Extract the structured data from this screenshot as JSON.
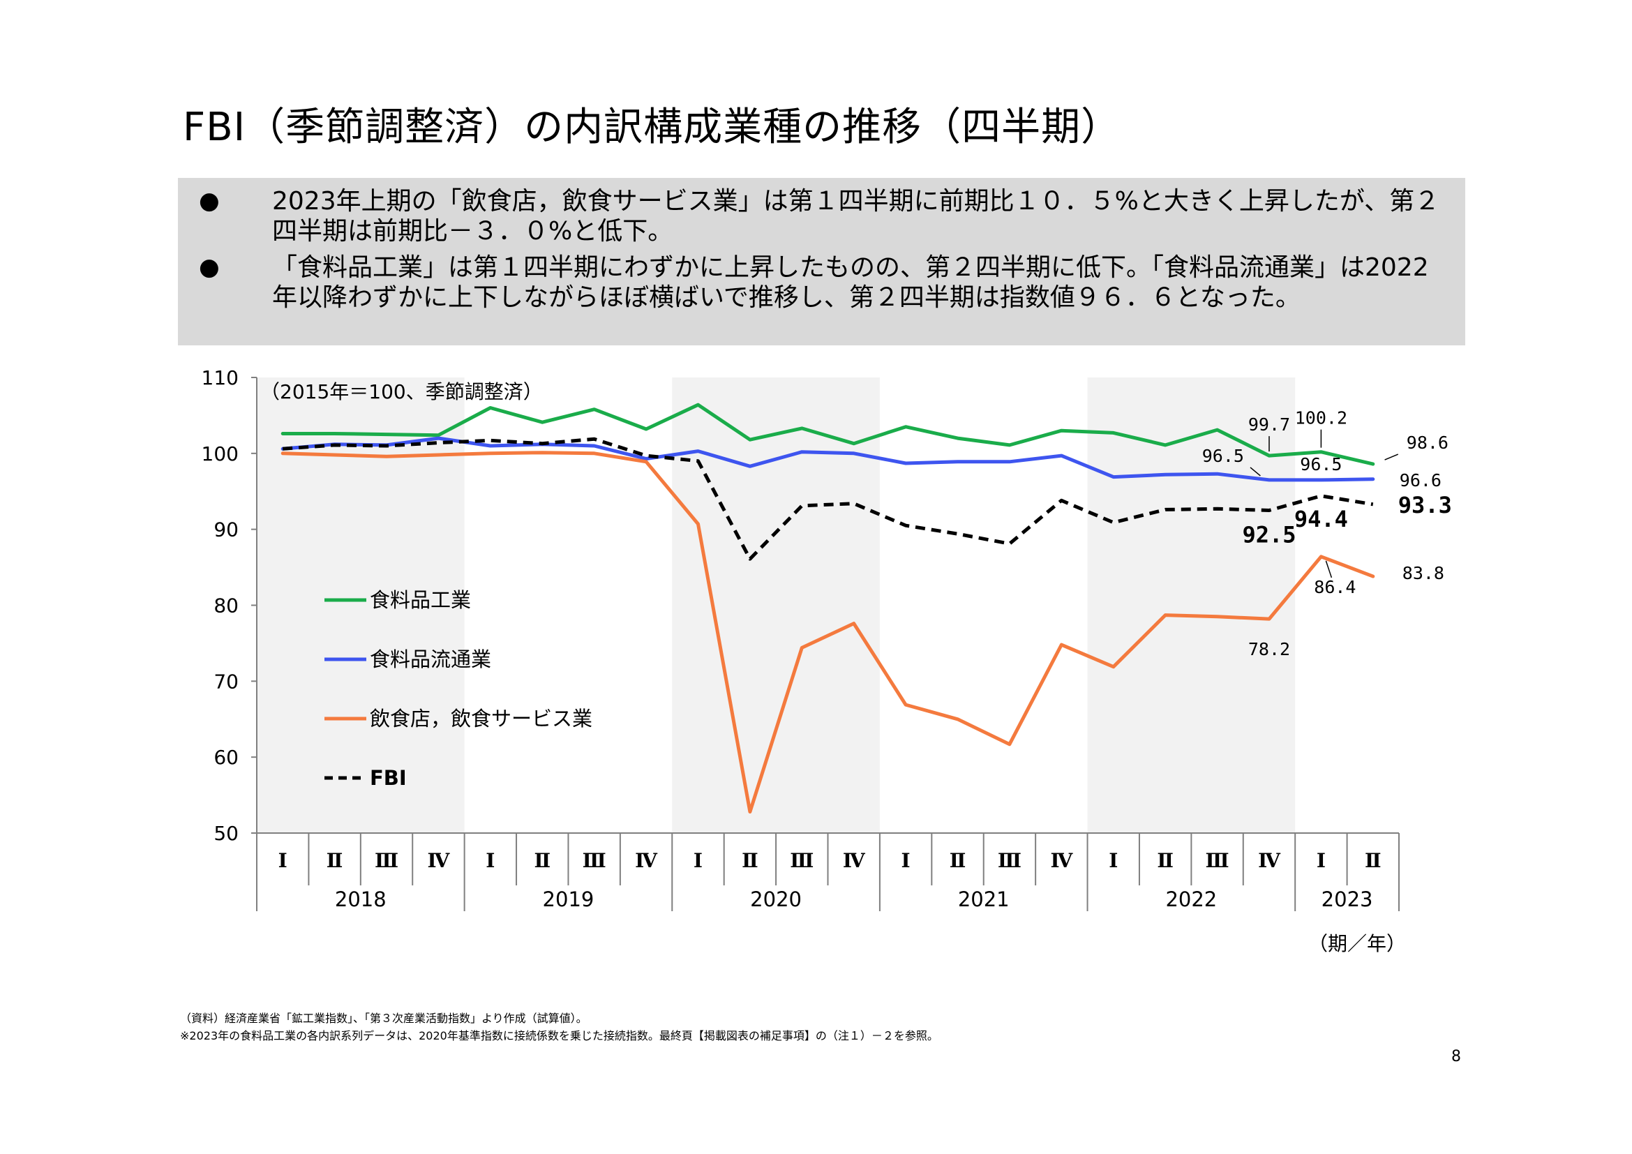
{
  "page": {
    "title": "FBI（季節調整済）の内訳構成業種の推移（四半期）",
    "bullets": [
      {
        "marker": "●",
        "text": "2023年上期の「飲食店，飲食サービス業」は第１四半期に前期比１０．５%と大きく上昇したが、第２四半期は前期比－３．０%と低下。"
      },
      {
        "marker": "●",
        "text": "「食料品工業」は第１四半期にわずかに上昇したものの、第２四半期に低下。「食料品流通業」は2022年以降わずかに上下しながらほぼ横ばいで推移し、第２四半期は指数値９６．６となった。"
      }
    ],
    "footnotes": [
      "（資料）経済産業省「鉱工業指数」、「第３次産業活動指数」より作成（試算値）。",
      "※2023年の食料品工業の各内訳系列データは、2020年基準指数に接続係数を乗じた接続指数。最終頁【掲載図表の補足事項】の（注１）－２を参照。"
    ],
    "page_number": "8"
  },
  "chart_data": {
    "type": "line",
    "unit_note": "（2015年＝100、季節調整済）",
    "x_axis_note": "（期／年）",
    "ylim": [
      50,
      110
    ],
    "yticks": [
      "50",
      "60",
      "70",
      "80",
      "90",
      "100",
      "110"
    ],
    "quarter_labels": [
      "Ⅰ",
      "Ⅱ",
      "Ⅲ",
      "Ⅳ",
      "Ⅰ",
      "Ⅱ",
      "Ⅲ",
      "Ⅳ",
      "Ⅰ",
      "Ⅱ",
      "Ⅲ",
      "Ⅳ",
      "Ⅰ",
      "Ⅱ",
      "Ⅲ",
      "Ⅳ",
      "Ⅰ",
      "Ⅱ",
      "Ⅲ",
      "Ⅳ",
      "Ⅰ",
      "Ⅱ"
    ],
    "years": [
      {
        "label": "2018",
        "quarters": 4,
        "shaded": true
      },
      {
        "label": "2019",
        "quarters": 4,
        "shaded": false
      },
      {
        "label": "2020",
        "quarters": 4,
        "shaded": true
      },
      {
        "label": "2021",
        "quarters": 4,
        "shaded": false
      },
      {
        "label": "2022",
        "quarters": 4,
        "shaded": true
      },
      {
        "label": "2023",
        "quarters": 2,
        "shaded": false
      }
    ],
    "series": [
      {
        "name": "食料品工業",
        "color": "#1aac4a",
        "dash": false,
        "values": [
          102.6,
          102.6,
          102.5,
          102.4,
          106.0,
          104.1,
          105.8,
          103.2,
          106.4,
          101.8,
          103.3,
          101.3,
          103.5,
          102.0,
          101.1,
          103.0,
          102.7,
          101.1,
          103.1,
          99.7,
          100.2,
          98.6
        ]
      },
      {
        "name": "食料品流通業",
        "color": "#3e55ef",
        "dash": false,
        "values": [
          100.6,
          101.2,
          101.1,
          102.0,
          101.0,
          101.2,
          101.0,
          99.3,
          100.3,
          98.3,
          100.2,
          100.0,
          98.7,
          98.9,
          98.9,
          99.7,
          96.9,
          97.2,
          97.3,
          96.5,
          96.5,
          96.6
        ]
      },
      {
        "name": "飲食店，飲食サービス業",
        "color": "#f47a3e",
        "dash": false,
        "values": [
          100.0,
          99.8,
          99.6,
          99.8,
          100.0,
          100.1,
          100.0,
          98.9,
          90.7,
          52.8,
          74.4,
          77.6,
          66.9,
          65.0,
          61.7,
          74.8,
          71.9,
          78.7,
          78.5,
          78.2,
          86.4,
          83.8
        ]
      },
      {
        "name": "FBI",
        "color": "#000000",
        "dash": true,
        "values": [
          100.6,
          101.1,
          101.0,
          101.4,
          101.7,
          101.3,
          101.9,
          99.7,
          99.0,
          86.1,
          93.1,
          93.4,
          90.5,
          89.4,
          88.1,
          93.8,
          90.9,
          92.6,
          92.7,
          92.5,
          94.4,
          93.3
        ]
      }
    ],
    "data_labels": [
      {
        "series": "食料品工業",
        "index": 19,
        "text": "99.7"
      },
      {
        "series": "食料品工業",
        "index": 20,
        "text": "100.2"
      },
      {
        "series": "食料品工業",
        "index": 21,
        "text": "98.6"
      },
      {
        "series": "食料品流通業",
        "index": 19,
        "text": "96.5"
      },
      {
        "series": "食料品流通業",
        "index": 20,
        "text": "96.5"
      },
      {
        "series": "食料品流通業",
        "index": 21,
        "text": "96.6"
      },
      {
        "series": "FBI",
        "index": 19,
        "text": "92.5"
      },
      {
        "series": "FBI",
        "index": 20,
        "text": "94.4"
      },
      {
        "series": "FBI",
        "index": 21,
        "text": "93.3"
      },
      {
        "series": "飲食店，飲食サービス業",
        "index": 19,
        "text": "78.2"
      },
      {
        "series": "飲食店，飲食サービス業",
        "index": 20,
        "text": "86.4"
      },
      {
        "series": "飲食店，飲食サービス業",
        "index": 21,
        "text": "83.8"
      }
    ],
    "legend": [
      {
        "name": "食料品工業",
        "color": "#1aac4a",
        "dash": false
      },
      {
        "name": "食料品流通業",
        "color": "#3e55ef",
        "dash": false
      },
      {
        "name": "飲食店，飲食サービス業",
        "color": "#f47a3e",
        "dash": false
      },
      {
        "name": "FBI",
        "color": "#000000",
        "dash": true
      }
    ],
    "legend_position": "left"
  }
}
